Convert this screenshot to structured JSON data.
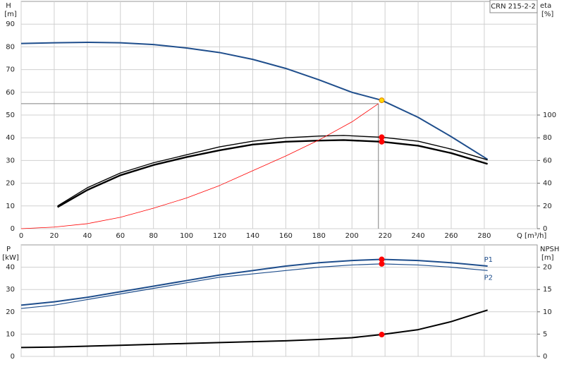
{
  "chart_data": [
    {
      "type": "line",
      "title": "CRN 215-2-2",
      "xlabel": "Q [m³/h]",
      "ylabel": "H",
      "yunit": "[m]",
      "y2label": "eta",
      "y2unit": "[%]",
      "xlim": [
        0,
        312
      ],
      "xticks": [
        0,
        20,
        40,
        60,
        80,
        100,
        120,
        140,
        160,
        180,
        200,
        220,
        240,
        260,
        280
      ],
      "ylim": [
        0,
        100
      ],
      "yticks": [
        0,
        10,
        20,
        30,
        40,
        50,
        60,
        70,
        80,
        90
      ],
      "y2lim": [
        0,
        200
      ],
      "y2ticks": [
        0,
        20,
        40,
        60,
        80,
        100
      ],
      "grid": true,
      "show_xtick_labels": true,
      "highlight_x": 218,
      "duty_lines": {
        "x": 216,
        "y": 55,
        "color": "#808080"
      },
      "x": [
        0,
        20,
        40,
        60,
        80,
        100,
        120,
        140,
        160,
        180,
        200,
        218,
        240,
        260,
        282
      ],
      "series": [
        {
          "color": "#1f4e8c",
          "width": 2,
          "highlight_color": "#ffd700",
          "values": [
            81.5,
            81.8,
            82,
            81.8,
            81,
            79.5,
            77.5,
            74.5,
            70.5,
            65.5,
            60,
            56.5,
            49,
            40.5,
            30.5
          ]
        },
        {
          "color": "#000000",
          "width": 1.4,
          "axis": "y2",
          "highlight_color": "#ff0000",
          "x": [
            22,
            40,
            60,
            80,
            100,
            120,
            140,
            160,
            180,
            195,
            218,
            240,
            260,
            282
          ],
          "values": [
            20,
            36,
            49,
            58,
            65,
            72,
            77,
            80,
            81.5,
            82,
            80.5,
            77,
            70,
            60.5
          ]
        },
        {
          "color": "#000000",
          "width": 2.4,
          "axis": "y2",
          "highlight_color": "#ff0000",
          "x": [
            22,
            40,
            60,
            80,
            100,
            120,
            140,
            160,
            180,
            195,
            218,
            240,
            260,
            282
          ],
          "values": [
            19,
            34,
            47,
            56,
            63,
            69,
            74,
            76.5,
            77.5,
            78,
            76.5,
            73,
            66.5,
            57
          ]
        },
        {
          "color": "#ff0000",
          "width": 0.8,
          "x": [
            0,
            20,
            40,
            60,
            80,
            100,
            120,
            140,
            160,
            180,
            200,
            216
          ],
          "values": [
            0,
            0.7,
            2.2,
            5,
            9,
            13.5,
            19,
            25.5,
            32,
            39,
            47,
            55
          ]
        }
      ]
    },
    {
      "type": "line",
      "ylabel": "P",
      "yunit": "[kW]",
      "y2label": "NPSH",
      "y2unit": "[m]",
      "xlim": [
        0,
        312
      ],
      "xticks": [
        0,
        20,
        40,
        60,
        80,
        100,
        120,
        140,
        160,
        180,
        200,
        220,
        240,
        260,
        280
      ],
      "ylim": [
        0,
        50
      ],
      "yticks": [
        0,
        10,
        20,
        30,
        40
      ],
      "y2lim": [
        0,
        25
      ],
      "y2ticks": [
        0,
        5,
        10,
        15,
        20
      ],
      "grid": true,
      "show_xtick_labels": false,
      "highlight_x": 218,
      "x": [
        0,
        20,
        40,
        60,
        80,
        100,
        120,
        140,
        160,
        180,
        200,
        218,
        240,
        260,
        282
      ],
      "series": [
        {
          "label": "P1",
          "label_side": "above",
          "color": "#1f4e8c",
          "width": 2,
          "highlight_color": "#ff0000",
          "values": [
            23,
            24.5,
            26.5,
            29,
            31.5,
            34,
            36.5,
            38.5,
            40.5,
            42,
            43,
            43.5,
            43,
            42,
            40.5
          ]
        },
        {
          "label": "P2",
          "label_side": "below",
          "color": "#1f4e8c",
          "width": 1.2,
          "highlight_color": "#ff0000",
          "values": [
            21.5,
            23,
            25.5,
            28,
            30.5,
            33,
            35.5,
            37,
            38.5,
            40,
            41,
            41.5,
            41,
            40,
            38.5
          ]
        },
        {
          "color": "#000000",
          "width": 2,
          "axis": "y2",
          "highlight_color": "#ff0000",
          "values": [
            2,
            2.1,
            2.3,
            2.5,
            2.7,
            2.9,
            3.1,
            3.3,
            3.5,
            3.8,
            4.2,
            4.9,
            6,
            7.8,
            10.4
          ]
        }
      ]
    }
  ]
}
